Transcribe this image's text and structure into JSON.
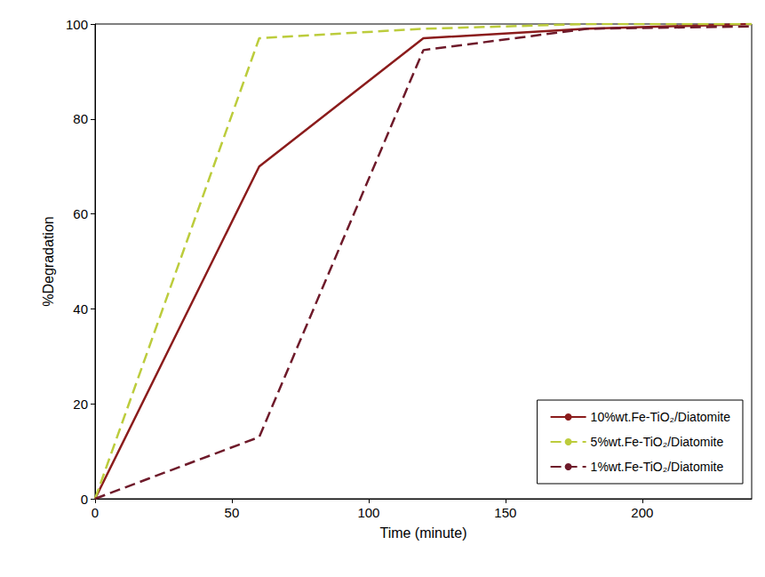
{
  "chart_data": {
    "type": "line",
    "x_label": "Time (minute)",
    "y_label": "%Degradation",
    "x": [
      0,
      60,
      120,
      180,
      240
    ],
    "series": [
      {
        "name": "10%wt.Fe-TiO₂/Diatomite",
        "color": "#8b1c1c",
        "line_style": "solid",
        "values": [
          0,
          70,
          97,
          99,
          100
        ]
      },
      {
        "name": "5%wt.Fe-TiO₂/Diatomite",
        "color": "#bccc3c",
        "line_style": "dashed",
        "values": [
          0,
          97,
          99,
          100,
          100
        ]
      },
      {
        "name": "1%wt.Fe-TiO₂/Diatomite",
        "color": "#6e1a2a",
        "line_style": "dashed",
        "values": [
          0,
          13,
          94.5,
          99,
          99.5
        ]
      }
    ],
    "xlim": [
      0,
      240
    ],
    "xticks": [
      0,
      50,
      100,
      150,
      200
    ],
    "ylim": [
      0,
      100
    ],
    "yticks": [
      0,
      20,
      40,
      60,
      80,
      100
    ],
    "grid": false,
    "legend": "bottom-right"
  }
}
